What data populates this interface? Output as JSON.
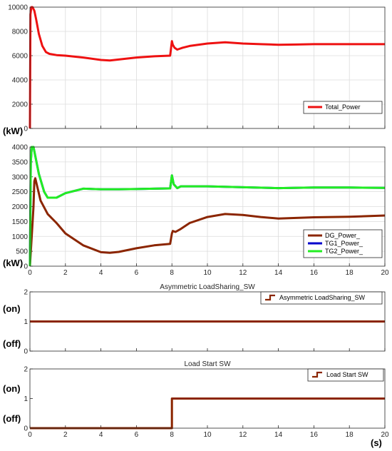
{
  "figure_labels": {
    "kw_top": "(kW)",
    "kw_mid": "(kW)",
    "on_sw1": "(on)",
    "off_sw1": "(off)",
    "on_sw2": "(on)",
    "off_sw2": "(off)",
    "time_unit": "(s)"
  },
  "chart_data": [
    {
      "type": "line",
      "title": "",
      "xlabel": "",
      "ylabel": "",
      "xlim": [
        0,
        20
      ],
      "ylim": [
        0,
        10000
      ],
      "yticks": [
        0,
        2000,
        4000,
        6000,
        8000,
        10000
      ],
      "xticks": [],
      "grid": true,
      "legend_position": "lower-right",
      "series": [
        {
          "name": "Total_Power",
          "color": "#ee1111",
          "x": [
            0,
            0.03,
            0.08,
            0.15,
            0.25,
            0.35,
            0.5,
            0.7,
            0.9,
            1.1,
            1.5,
            2,
            3,
            4,
            4.5,
            5,
            6,
            7,
            7.9,
            8.0,
            8.05,
            8.15,
            8.3,
            8.6,
            9,
            10,
            11,
            12,
            13,
            14,
            15,
            16,
            17,
            18,
            19,
            20
          ],
          "y": [
            0,
            9400,
            10000,
            10000,
            9700,
            9000,
            7800,
            6800,
            6300,
            6150,
            6050,
            6000,
            5850,
            5650,
            5600,
            5680,
            5850,
            5950,
            6000,
            7200,
            6900,
            6650,
            6500,
            6650,
            6800,
            7000,
            7100,
            7000,
            6950,
            6900,
            6920,
            6950,
            6950,
            6950,
            6950,
            6950
          ]
        }
      ]
    },
    {
      "type": "line",
      "title": "",
      "xlabel": "",
      "ylabel": "",
      "xlim": [
        0,
        20
      ],
      "ylim": [
        0,
        4000
      ],
      "yticks": [
        0,
        500,
        1000,
        1500,
        2000,
        2500,
        3000,
        3500,
        4000
      ],
      "xticks": [
        0,
        2,
        4,
        6,
        8,
        10,
        12,
        14,
        16,
        18,
        20
      ],
      "grid": true,
      "legend_position": "lower-right",
      "series": [
        {
          "name": "DG_Power_",
          "color": "#8b2500",
          "x": [
            0,
            0.1,
            0.2,
            0.25,
            0.3,
            0.4,
            0.6,
            1,
            1.5,
            2,
            3,
            4,
            4.5,
            5,
            6,
            7,
            7.9,
            8.0,
            8.05,
            8.2,
            8.5,
            9,
            10,
            11,
            12,
            13,
            14,
            15,
            16,
            17,
            18,
            19,
            20
          ],
          "y": [
            0,
            1000,
            2000,
            2850,
            2950,
            2700,
            2200,
            1750,
            1450,
            1100,
            700,
            470,
            450,
            480,
            600,
            700,
            750,
            1100,
            1180,
            1150,
            1250,
            1450,
            1650,
            1750,
            1720,
            1650,
            1600,
            1620,
            1640,
            1650,
            1660,
            1680,
            1700
          ]
        },
        {
          "name": "TG1_Power_",
          "color": "#0000cc",
          "x": [
            0,
            0.05,
            0.1,
            0.2,
            0.3,
            0.5,
            0.8,
            1,
            1.5,
            2,
            3,
            4,
            5,
            6,
            7,
            7.9,
            8.0,
            8.1,
            8.3,
            8.5,
            9,
            10,
            12,
            14,
            16,
            18,
            20
          ],
          "y": [
            0,
            3500,
            4000,
            4000,
            3700,
            3100,
            2500,
            2300,
            2300,
            2450,
            2600,
            2580,
            2580,
            2590,
            2600,
            2610,
            3050,
            2750,
            2620,
            2680,
            2680,
            2680,
            2650,
            2620,
            2640,
            2640,
            2630
          ]
        },
        {
          "name": "TG2_Power_",
          "color": "#22ee22",
          "x": [
            0,
            0.05,
            0.1,
            0.2,
            0.3,
            0.5,
            0.8,
            1,
            1.5,
            2,
            3,
            4,
            5,
            6,
            7,
            7.9,
            8.0,
            8.1,
            8.3,
            8.5,
            9,
            10,
            12,
            14,
            16,
            18,
            20
          ],
          "y": [
            0,
            3500,
            4000,
            4000,
            3700,
            3100,
            2500,
            2300,
            2300,
            2450,
            2600,
            2580,
            2580,
            2590,
            2600,
            2610,
            3050,
            2750,
            2620,
            2680,
            2680,
            2680,
            2650,
            2620,
            2640,
            2640,
            2630
          ]
        }
      ]
    },
    {
      "type": "line",
      "title": "Asymmetric LoadSharing_SW",
      "xlabel": "",
      "ylabel": "",
      "xlim": [
        0,
        20
      ],
      "ylim": [
        0,
        2
      ],
      "yticks": [
        0,
        1,
        2
      ],
      "xticks": [],
      "grid": false,
      "legend_position": "top-right",
      "series": [
        {
          "name": "Asymmetric LoadSharing_SW",
          "color": "#8b2500",
          "x": [
            0,
            20
          ],
          "y": [
            1,
            1
          ]
        }
      ]
    },
    {
      "type": "line",
      "title": "Load Start SW",
      "xlabel": "",
      "ylabel": "",
      "xlim": [
        0,
        20
      ],
      "ylim": [
        0,
        2
      ],
      "yticks": [
        0,
        1,
        2
      ],
      "xticks": [
        0,
        2,
        4,
        6,
        8,
        10,
        12,
        14,
        16,
        18,
        20
      ],
      "grid": false,
      "legend_position": "top-right",
      "series": [
        {
          "name": "Load Start SW",
          "color": "#8b2500",
          "x": [
            0,
            8,
            8,
            20
          ],
          "y": [
            0,
            0,
            1,
            1
          ]
        }
      ]
    }
  ]
}
